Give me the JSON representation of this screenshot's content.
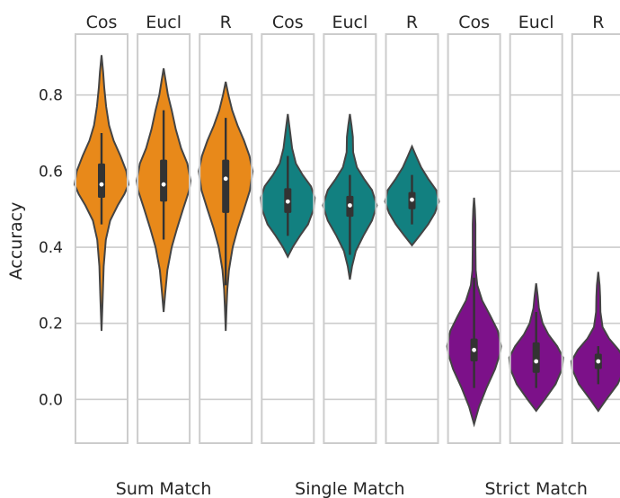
{
  "chart_data": {
    "type": "violin",
    "ylabel": "Accuracy",
    "ylim": [
      -0.115,
      0.96
    ],
    "yticks": [
      0.0,
      0.2,
      0.4,
      0.6,
      0.8
    ],
    "ytick_labels": [
      "0.0",
      "0.2",
      "0.4",
      "0.6",
      "0.8"
    ],
    "grid": true,
    "groups": [
      {
        "label": "Sum Match",
        "color": "#e8891a",
        "panels": [
          {
            "label": "Cos",
            "min": 0.18,
            "q1": 0.53,
            "median": 0.565,
            "q3": 0.62,
            "max": 0.905,
            "whisker_low": 0.46,
            "whisker_high": 0.7,
            "shape": [
              [
                0.18,
                0.0
              ],
              [
                0.26,
                0.04
              ],
              [
                0.35,
                0.08
              ],
              [
                0.42,
                0.16
              ],
              [
                0.47,
                0.32
              ],
              [
                0.51,
                0.6
              ],
              [
                0.54,
                0.85
              ],
              [
                0.565,
                1.0
              ],
              [
                0.6,
                0.92
              ],
              [
                0.64,
                0.7
              ],
              [
                0.68,
                0.45
              ],
              [
                0.72,
                0.28
              ],
              [
                0.77,
                0.17
              ],
              [
                0.82,
                0.1
              ],
              [
                0.86,
                0.06
              ],
              [
                0.905,
                0.0
              ]
            ]
          },
          {
            "label": "Eucl",
            "min": 0.23,
            "q1": 0.52,
            "median": 0.565,
            "q3": 0.63,
            "max": 0.87,
            "whisker_low": 0.42,
            "whisker_high": 0.76,
            "shape": [
              [
                0.23,
                0.0
              ],
              [
                0.28,
                0.06
              ],
              [
                0.34,
                0.14
              ],
              [
                0.4,
                0.3
              ],
              [
                0.45,
                0.5
              ],
              [
                0.5,
                0.72
              ],
              [
                0.55,
                0.95
              ],
              [
                0.575,
                1.0
              ],
              [
                0.62,
                0.88
              ],
              [
                0.66,
                0.65
              ],
              [
                0.71,
                0.45
              ],
              [
                0.76,
                0.3
              ],
              [
                0.8,
                0.16
              ],
              [
                0.84,
                0.07
              ],
              [
                0.87,
                0.0
              ]
            ]
          },
          {
            "label": "R",
            "min": 0.18,
            "q1": 0.49,
            "median": 0.58,
            "q3": 0.63,
            "max": 0.835,
            "whisker_low": 0.3,
            "whisker_high": 0.74,
            "shape": [
              [
                0.18,
                0.0
              ],
              [
                0.24,
                0.03
              ],
              [
                0.29,
                0.06
              ],
              [
                0.34,
                0.12
              ],
              [
                0.4,
                0.26
              ],
              [
                0.45,
                0.45
              ],
              [
                0.5,
                0.68
              ],
              [
                0.55,
                0.9
              ],
              [
                0.6,
                1.0
              ],
              [
                0.64,
                0.88
              ],
              [
                0.68,
                0.68
              ],
              [
                0.72,
                0.44
              ],
              [
                0.76,
                0.24
              ],
              [
                0.8,
                0.1
              ],
              [
                0.835,
                0.0
              ]
            ]
          }
        ]
      },
      {
        "label": "Single Match",
        "color": "#128080",
        "panels": [
          {
            "label": "Cos",
            "min": 0.375,
            "q1": 0.49,
            "median": 0.52,
            "q3": 0.555,
            "max": 0.75,
            "whisker_low": 0.43,
            "whisker_high": 0.64,
            "shape": [
              [
                0.375,
                0.0
              ],
              [
                0.4,
                0.18
              ],
              [
                0.43,
                0.45
              ],
              [
                0.46,
                0.75
              ],
              [
                0.5,
                0.96
              ],
              [
                0.53,
                1.0
              ],
              [
                0.56,
                0.86
              ],
              [
                0.59,
                0.55
              ],
              [
                0.62,
                0.3
              ],
              [
                0.66,
                0.16
              ],
              [
                0.7,
                0.09
              ],
              [
                0.75,
                0.0
              ]
            ]
          },
          {
            "label": "Eucl",
            "min": 0.315,
            "q1": 0.48,
            "median": 0.51,
            "q3": 0.535,
            "max": 0.75,
            "whisker_low": 0.38,
            "whisker_high": 0.59,
            "shape": [
              [
                0.315,
                0.0
              ],
              [
                0.35,
                0.08
              ],
              [
                0.39,
                0.22
              ],
              [
                0.43,
                0.5
              ],
              [
                0.47,
                0.82
              ],
              [
                0.51,
                1.0
              ],
              [
                0.55,
                0.82
              ],
              [
                0.58,
                0.52
              ],
              [
                0.61,
                0.26
              ],
              [
                0.65,
                0.12
              ],
              [
                0.69,
                0.11
              ],
              [
                0.72,
                0.06
              ],
              [
                0.75,
                0.0
              ]
            ]
          },
          {
            "label": "R",
            "min": 0.405,
            "q1": 0.5,
            "median": 0.525,
            "q3": 0.545,
            "max": 0.665,
            "whisker_low": 0.46,
            "whisker_high": 0.59,
            "shape": [
              [
                0.405,
                0.0
              ],
              [
                0.43,
                0.28
              ],
              [
                0.46,
                0.6
              ],
              [
                0.49,
                0.85
              ],
              [
                0.52,
                1.0
              ],
              [
                0.55,
                0.9
              ],
              [
                0.58,
                0.6
              ],
              [
                0.61,
                0.34
              ],
              [
                0.64,
                0.15
              ],
              [
                0.665,
                0.0
              ]
            ]
          }
        ]
      },
      {
        "label": "Strict Match",
        "color": "#7c1189",
        "panels": [
          {
            "label": "Cos",
            "min": -0.065,
            "q1": 0.1,
            "median": 0.13,
            "q3": 0.16,
            "max": 0.53,
            "whisker_low": 0.03,
            "whisker_high": 0.32,
            "shape": [
              [
                -0.065,
                0.0
              ],
              [
                -0.02,
                0.18
              ],
              [
                0.03,
                0.46
              ],
              [
                0.08,
                0.78
              ],
              [
                0.12,
                0.96
              ],
              [
                0.14,
                1.0
              ],
              [
                0.18,
                0.88
              ],
              [
                0.22,
                0.6
              ],
              [
                0.26,
                0.3
              ],
              [
                0.3,
                0.12
              ],
              [
                0.34,
                0.06
              ],
              [
                0.4,
                0.05
              ],
              [
                0.46,
                0.05
              ],
              [
                0.5,
                0.03
              ],
              [
                0.53,
                0.0
              ]
            ]
          },
          {
            "label": "Eucl",
            "min": -0.03,
            "q1": 0.07,
            "median": 0.1,
            "q3": 0.15,
            "max": 0.305,
            "whisker_low": 0.03,
            "whisker_high": 0.23,
            "shape": [
              [
                -0.03,
                0.0
              ],
              [
                0.0,
                0.32
              ],
              [
                0.04,
                0.72
              ],
              [
                0.08,
                0.96
              ],
              [
                0.11,
                1.0
              ],
              [
                0.14,
                0.78
              ],
              [
                0.17,
                0.46
              ],
              [
                0.2,
                0.24
              ],
              [
                0.24,
                0.1
              ],
              [
                0.27,
                0.06
              ],
              [
                0.305,
                0.0
              ]
            ]
          },
          {
            "label": "R",
            "min": -0.03,
            "q1": 0.08,
            "median": 0.1,
            "q3": 0.12,
            "max": 0.335,
            "whisker_low": 0.04,
            "whisker_high": 0.14,
            "shape": [
              [
                -0.03,
                0.0
              ],
              [
                0.0,
                0.3
              ],
              [
                0.04,
                0.72
              ],
              [
                0.08,
                0.97
              ],
              [
                0.1,
                1.0
              ],
              [
                0.13,
                0.76
              ],
              [
                0.16,
                0.4
              ],
              [
                0.19,
                0.16
              ],
              [
                0.23,
                0.08
              ],
              [
                0.27,
                0.07
              ],
              [
                0.3,
                0.05
              ],
              [
                0.335,
                0.0
              ]
            ]
          }
        ]
      }
    ]
  }
}
